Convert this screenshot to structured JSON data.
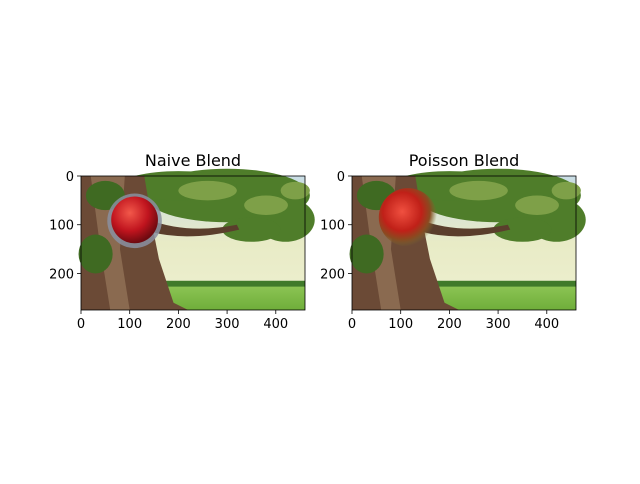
{
  "chart_data": [
    {
      "type": "image",
      "title": "Naive Blend",
      "xlim": [
        0,
        460
      ],
      "ylim": [
        275,
        0
      ],
      "xticks": [
        0,
        100,
        200,
        300,
        400
      ],
      "yticks": [
        0,
        100,
        200
      ]
    },
    {
      "type": "image",
      "title": "Poisson Blend",
      "xlim": [
        0,
        460
      ],
      "ylim": [
        275,
        0
      ],
      "xticks": [
        0,
        100,
        200,
        300,
        400
      ],
      "yticks": [
        0,
        100,
        200
      ]
    }
  ]
}
